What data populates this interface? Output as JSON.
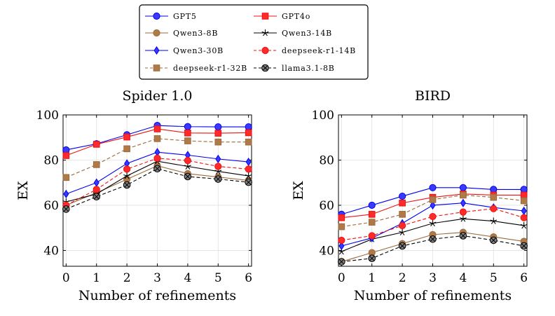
{
  "legend": {
    "position": "top-center",
    "columns": 2
  },
  "chart_data": [
    {
      "type": "line",
      "title": "Spider 1.0",
      "xlabel": "Number of refinements",
      "ylabel": "EX",
      "x": [
        0,
        1,
        2,
        3,
        4,
        5,
        6
      ],
      "xticks": [
        "0",
        "1",
        "2",
        "3",
        "4",
        "5",
        "6"
      ],
      "yticks": [
        "40",
        "60",
        "80",
        "100"
      ],
      "xlim": [
        -0.1,
        6.1
      ],
      "ylim": [
        33,
        100
      ],
      "grid": true,
      "series": [
        {
          "name": "GPT5",
          "color": "#0000ee",
          "marker": "circle",
          "dash": "solid",
          "values": [
            84.5,
            87.2,
            91.2,
            95.3,
            94.8,
            94.7,
            94.7
          ]
        },
        {
          "name": "GPT4o",
          "color": "#ee1111",
          "marker": "square",
          "dash": "solid",
          "values": [
            82.0,
            87.0,
            90.2,
            93.8,
            92.0,
            91.9,
            92.1
          ]
        },
        {
          "name": "Qwen3-8B",
          "color": "#9b6a3c",
          "marker": "circle",
          "dash": "solid",
          "values": [
            60.0,
            65.5,
            71.5,
            77.5,
            74.0,
            72.5,
            71.0
          ]
        },
        {
          "name": "Qwen3-14B",
          "color": "#000000",
          "marker": "star",
          "dash": "solid",
          "values": [
            61.5,
            65.0,
            73.0,
            79.5,
            77.2,
            75.0,
            73.0
          ]
        },
        {
          "name": "Qwen3-30B",
          "color": "#0000ee",
          "marker": "diamond",
          "dash": "solid",
          "values": [
            65.0,
            70.0,
            78.5,
            83.5,
            82.2,
            80.5,
            79.2
          ]
        },
        {
          "name": "deepseek-r1-14B",
          "color": "#ee1111",
          "marker": "circle",
          "dash": "dashed",
          "values": [
            60.0,
            67.0,
            76.0,
            80.8,
            79.8,
            77.2,
            76.0
          ]
        },
        {
          "name": "deepseek-r1-32B",
          "color": "#9b6a3c",
          "marker": "square",
          "dash": "dashed",
          "values": [
            72.3,
            78.0,
            85.0,
            89.5,
            88.5,
            88.0,
            88.0
          ]
        },
        {
          "name": "llama3.1-8B",
          "color": "#000000",
          "marker": "xcircle",
          "dash": "dashed",
          "values": [
            58.3,
            63.8,
            69.0,
            76.2,
            72.7,
            71.6,
            70.2
          ]
        }
      ]
    },
    {
      "type": "line",
      "title": "BIRD",
      "xlabel": "Number of refinements",
      "ylabel": "EX",
      "x": [
        0,
        1,
        2,
        3,
        4,
        5,
        6
      ],
      "xticks": [
        "0",
        "1",
        "2",
        "3",
        "4",
        "5",
        "6"
      ],
      "yticks": [
        "40",
        "60",
        "80",
        "100"
      ],
      "xlim": [
        -0.1,
        6.1
      ],
      "ylim": [
        33,
        100
      ],
      "grid": true,
      "series": [
        {
          "name": "GPT5",
          "color": "#0000ee",
          "marker": "circle",
          "dash": "solid",
          "values": [
            56.0,
            60.0,
            64.0,
            67.8,
            67.8,
            67.0,
            67.0
          ]
        },
        {
          "name": "GPT4o",
          "color": "#ee1111",
          "marker": "square",
          "dash": "solid",
          "values": [
            54.5,
            56.0,
            61.0,
            63.5,
            65.0,
            64.5,
            64.5
          ]
        },
        {
          "name": "Qwen3-8B",
          "color": "#9b6a3c",
          "marker": "circle",
          "dash": "solid",
          "values": [
            35.0,
            39.0,
            43.0,
            47.0,
            48.0,
            46.0,
            44.0
          ]
        },
        {
          "name": "Qwen3-14B",
          "color": "#000000",
          "marker": "star",
          "dash": "solid",
          "values": [
            39.5,
            45.0,
            48.0,
            52.0,
            54.0,
            53.0,
            51.0
          ]
        },
        {
          "name": "Qwen3-30B",
          "color": "#0000ee",
          "marker": "diamond",
          "dash": "solid",
          "values": [
            42.0,
            45.5,
            52.0,
            60.0,
            61.0,
            59.0,
            57.5
          ]
        },
        {
          "name": "deepseek-r1-14B",
          "color": "#ee1111",
          "marker": "circle",
          "dash": "dashed",
          "values": [
            44.5,
            46.5,
            51.0,
            55.0,
            57.0,
            58.5,
            54.5
          ]
        },
        {
          "name": "deepseek-r1-32B",
          "color": "#9b6a3c",
          "marker": "square",
          "dash": "dashed",
          "values": [
            50.5,
            52.5,
            56.0,
            62.5,
            64.5,
            63.5,
            62.0
          ]
        },
        {
          "name": "llama3.1-8B",
          "color": "#000000",
          "marker": "xcircle",
          "dash": "dashed",
          "values": [
            35.0,
            36.5,
            42.0,
            45.0,
            46.5,
            44.5,
            42.0
          ]
        }
      ]
    }
  ]
}
